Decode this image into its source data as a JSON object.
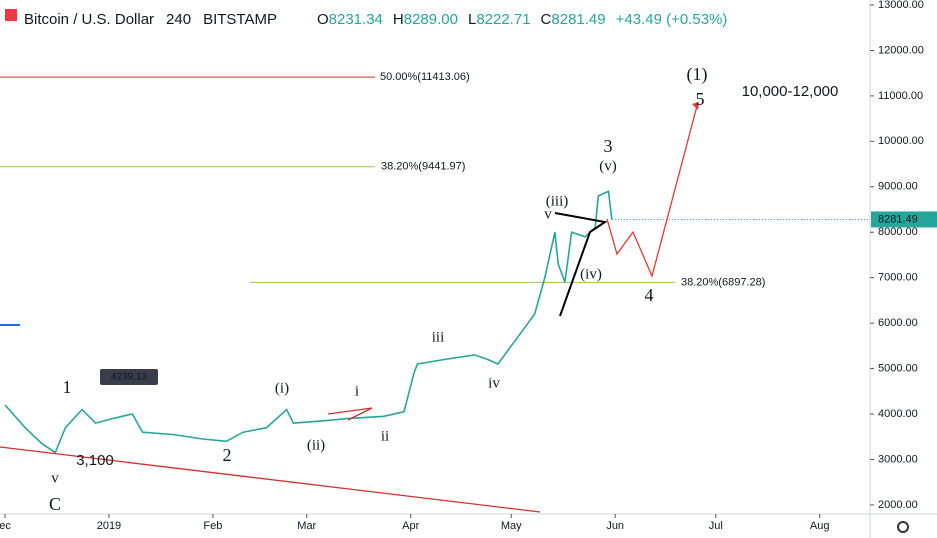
{
  "header": {
    "symbol": "Bitcoin / U.S. Dollar",
    "interval": "240",
    "exchange": "BITSTAMP",
    "open": [
      "O",
      "8231.34"
    ],
    "high": [
      "H",
      "8289.00"
    ],
    "low": [
      "L",
      "8222.71"
    ],
    "close": [
      "C",
      "8281.49"
    ],
    "change": "+43.49 (+0.53%)"
  },
  "chart_data": {
    "type": "line",
    "color": "#26a69a",
    "x": [
      0,
      6,
      11,
      15,
      18,
      23,
      27,
      32,
      38,
      41,
      50,
      59,
      66,
      71,
      78,
      84,
      86,
      95,
      102,
      113,
      119,
      122,
      123,
      131,
      140,
      144,
      147,
      153,
      158,
      161,
      164,
      165,
      167,
      169,
      173,
      176,
      177,
      180,
      181
    ],
    "values": [
      4200,
      3700,
      3350,
      3150,
      3700,
      4100,
      3800,
      3900,
      4000,
      3600,
      3550,
      3450,
      3400,
      3600,
      3700,
      4100,
      3800,
      3850,
      3900,
      3950,
      4050,
      4900,
      5100,
      5200,
      5300,
      5200,
      5100,
      5700,
      6200,
      7000,
      8000,
      7300,
      6900,
      8000,
      7900,
      8100,
      8800,
      8900,
      8281.49
    ],
    "last_price": {
      "value": 8281.49,
      "label": "8281.49"
    },
    "xlim": [
      -1.5,
      258
    ],
    "xticks": [
      {
        "value": 0,
        "label": "ec"
      },
      {
        "value": 31,
        "label": "2019"
      },
      {
        "value": 62,
        "label": "Feb"
      },
      {
        "value": 90,
        "label": "Mar"
      },
      {
        "value": 121,
        "label": "Apr"
      },
      {
        "value": 151,
        "label": "May"
      },
      {
        "value": 182,
        "label": "Jun"
      },
      {
        "value": 212,
        "label": "Jul"
      },
      {
        "value": 243,
        "label": "Aug"
      }
    ],
    "ylim": [
      1800,
      13110
    ],
    "yticks": [
      {
        "value": 2000,
        "label": "2000.00"
      },
      {
        "value": 3000,
        "label": "3000.00"
      },
      {
        "value": 4000,
        "label": "4000.00"
      },
      {
        "value": 5000,
        "label": "5000.00"
      },
      {
        "value": 6000,
        "label": "6000.00"
      },
      {
        "value": 7000,
        "label": "7000.00"
      },
      {
        "value": 8000,
        "label": "8000.00"
      },
      {
        "value": 9000,
        "label": "9000.00"
      },
      {
        "value": 10000,
        "label": "10000.00"
      },
      {
        "value": 11000,
        "label": "11000.00"
      },
      {
        "value": 12000,
        "label": "12000.00"
      },
      {
        "value": 13000,
        "label": "13000.00"
      }
    ],
    "fib_levels": [
      {
        "value": 11413.06,
        "label": "50.00%(11413.06)",
        "color": "#d32f2f"
      },
      {
        "value": 9441.97,
        "label": "38.20%(9441.97)",
        "color": "#9bc53d"
      },
      {
        "value": 6897.28,
        "label": "38.20%(6897.28)",
        "color": "#9bc53d"
      }
    ],
    "annotations": [
      "1",
      "2",
      "(i)",
      "(ii)",
      "i",
      "ii",
      "iii",
      "iv",
      "(iii)",
      "v",
      "(iv)",
      "3",
      "(v)",
      "4",
      "(1)",
      "5",
      "v",
      "C",
      "3,100",
      "10,000-12,000",
      "4239.13"
    ]
  }
}
